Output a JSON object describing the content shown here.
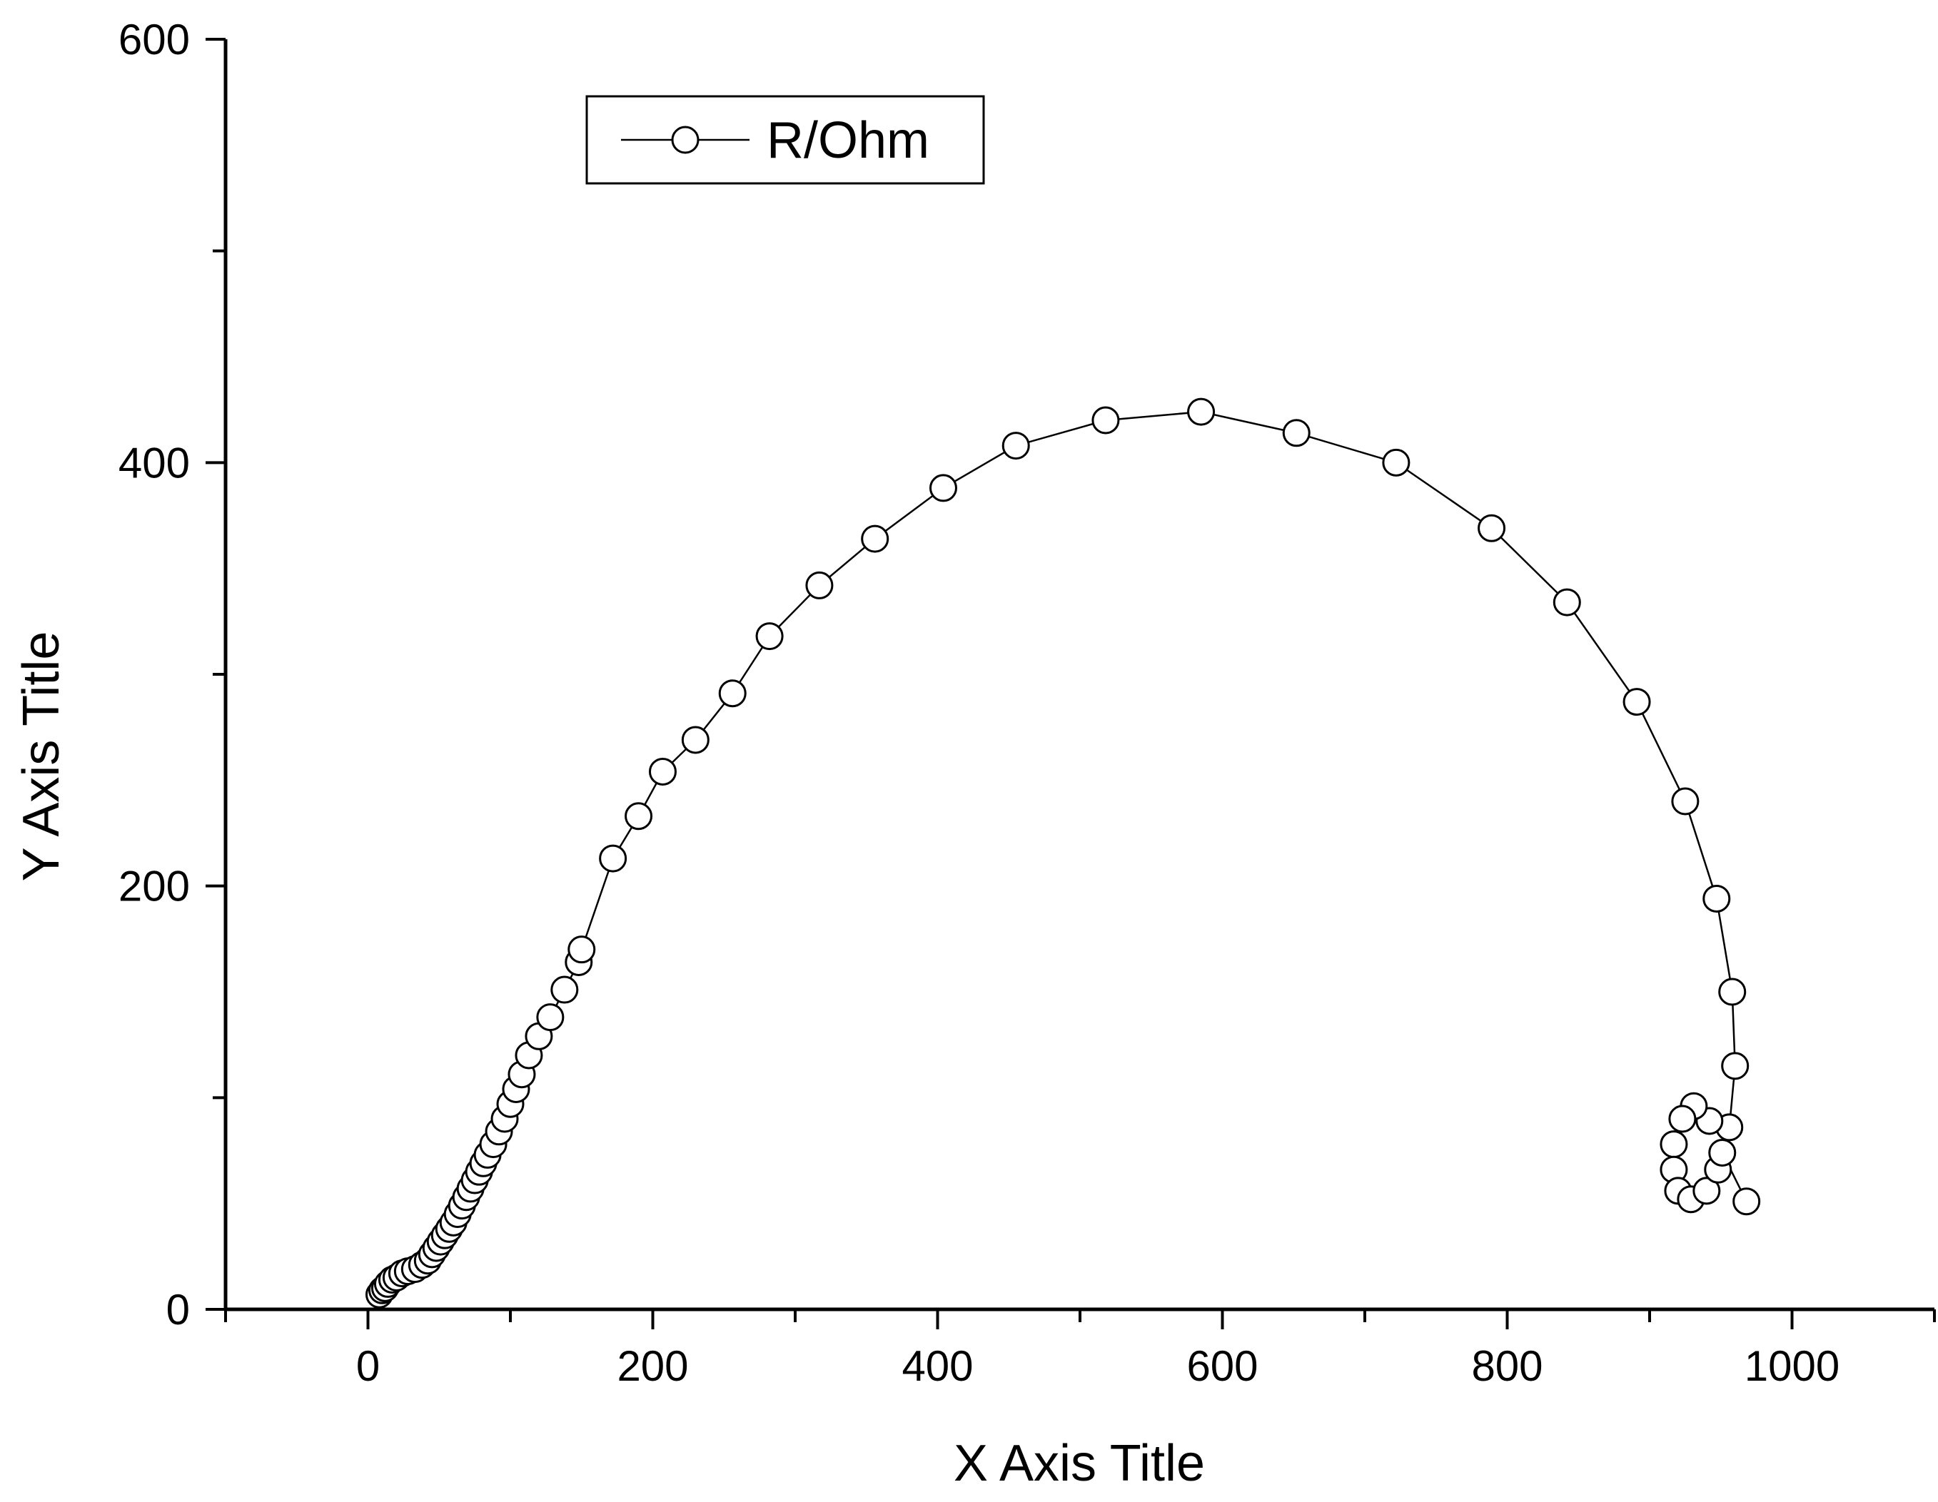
{
  "chart_data": {
    "type": "scatter",
    "xlabel": "X Axis Title",
    "ylabel": "Y Axis Title",
    "xlim": [
      -100,
      1100
    ],
    "ylim": [
      0,
      600
    ],
    "x_ticks": [
      0,
      200,
      400,
      600,
      800,
      1000
    ],
    "x_minor_ticks": [
      -100,
      100,
      300,
      500,
      700,
      900,
      1100
    ],
    "y_ticks": [
      0,
      200,
      400,
      600
    ],
    "y_minor_ticks": [
      100,
      300,
      500
    ],
    "grid": false,
    "legend": {
      "position": "top-left",
      "entries": [
        "R/Ohm"
      ]
    },
    "series": [
      {
        "name": "R/Ohm",
        "marker": "open-circle",
        "line": true,
        "color": "#000000",
        "points": [
          [
            8,
            7
          ],
          [
            10,
            9
          ],
          [
            12,
            10
          ],
          [
            14,
            12
          ],
          [
            17,
            14
          ],
          [
            20,
            15
          ],
          [
            24,
            17
          ],
          [
            28,
            18
          ],
          [
            33,
            19
          ],
          [
            38,
            21
          ],
          [
            42,
            23
          ],
          [
            45,
            26
          ],
          [
            48,
            29
          ],
          [
            51,
            32
          ],
          [
            54,
            35
          ],
          [
            57,
            38
          ],
          [
            60,
            41
          ],
          [
            63,
            45
          ],
          [
            66,
            49
          ],
          [
            69,
            53
          ],
          [
            72,
            57
          ],
          [
            75,
            61
          ],
          [
            78,
            65
          ],
          [
            81,
            69
          ],
          [
            84,
            73
          ],
          [
            88,
            78
          ],
          [
            92,
            84
          ],
          [
            96,
            90
          ],
          [
            100,
            97
          ],
          [
            104,
            104
          ],
          [
            108,
            111
          ],
          [
            113,
            120
          ],
          [
            120,
            129
          ],
          [
            128,
            138
          ],
          [
            138,
            151
          ],
          [
            148,
            164
          ],
          [
            150,
            170
          ],
          [
            172,
            213
          ],
          [
            190,
            233
          ],
          [
            207,
            254
          ],
          [
            230,
            269
          ],
          [
            256,
            291
          ],
          [
            282,
            318
          ],
          [
            317,
            342
          ],
          [
            356,
            364
          ],
          [
            404,
            388
          ],
          [
            455,
            408
          ],
          [
            518,
            420
          ],
          [
            585,
            424
          ],
          [
            652,
            414
          ],
          [
            722,
            400
          ],
          [
            789,
            369
          ],
          [
            842,
            334
          ],
          [
            891,
            287
          ],
          [
            925,
            240
          ],
          [
            947,
            194
          ],
          [
            958,
            150
          ],
          [
            960,
            115
          ],
          [
            956,
            86
          ],
          [
            942,
            89
          ],
          [
            931,
            96
          ],
          [
            923,
            90
          ],
          [
            917,
            78
          ],
          [
            917,
            66
          ],
          [
            920,
            56
          ],
          [
            929,
            52
          ],
          [
            940,
            56
          ],
          [
            948,
            66
          ],
          [
            951,
            74
          ],
          [
            968,
            51
          ]
        ]
      }
    ]
  }
}
